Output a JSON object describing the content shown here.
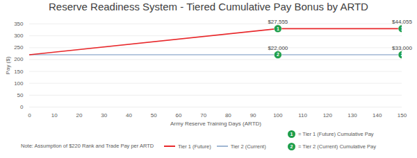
{
  "chart_data": {
    "type": "line",
    "title": "Reserve Readiness System - Tiered Cumulative Pay Bonus by ARTD",
    "x_label": "Army Reserve Training Days (ARTD)",
    "y_label": "Pay ($)",
    "x": [
      0,
      100,
      150
    ],
    "series": [
      {
        "name": "Tier 1 (Future)",
        "color": "#e8282b",
        "values": [
          220,
          330,
          330
        ]
      },
      {
        "name": "Tier 2 (Current)",
        "color": "#9fb6d3",
        "values": [
          220,
          220,
          220
        ]
      }
    ],
    "xlim": [
      0,
      150
    ],
    "xticks": [
      0,
      10,
      20,
      30,
      40,
      50,
      60,
      70,
      80,
      90,
      100,
      110,
      120,
      130,
      140,
      150
    ],
    "ylim": [
      0,
      350
    ],
    "yticks": [
      0,
      50,
      100,
      150,
      200,
      250,
      300,
      350
    ],
    "grid": true,
    "legend": "bottom",
    "annotations": [
      {
        "x": 100,
        "y": 330,
        "text": "$27,555",
        "badge": "1"
      },
      {
        "x": 150,
        "y": 330,
        "text": "$44,055",
        "badge": "1"
      },
      {
        "x": 100,
        "y": 220,
        "text": "$22,000",
        "badge": "2"
      },
      {
        "x": 150,
        "y": 220,
        "text": "$33,000",
        "badge": "2"
      }
    ],
    "badges": {
      "color": "#1e9e4a",
      "items": [
        {
          "badge": "1",
          "text": "= Tier 1 (Future) Cumulative Pay"
        },
        {
          "badge": "2",
          "text": "= Tier 2 (Current) Cumulative Pay"
        }
      ]
    },
    "note": "Note: Assumption of $220 Rank and Trade Pay per ARTD"
  }
}
